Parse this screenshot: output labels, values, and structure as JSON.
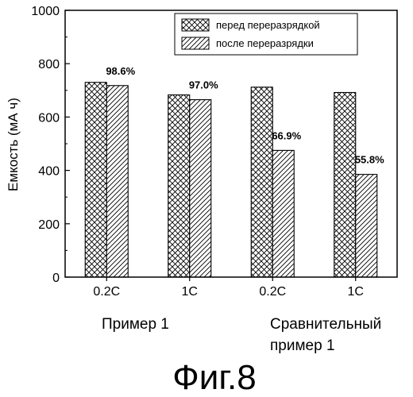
{
  "chart_data": {
    "type": "bar",
    "ylabel": "Емкость (мА ч)",
    "ylim": [
      0,
      1000
    ],
    "yticks": [
      0,
      200,
      400,
      600,
      800,
      1000
    ],
    "categories": [
      "0.2C",
      "1C",
      "0.2C",
      "1C"
    ],
    "groups": [
      {
        "label_lines": [
          "Пример 1"
        ]
      },
      {
        "label_lines": [
          "Сравнительный",
          "пример 1"
        ]
      }
    ],
    "series": [
      {
        "name": "перед переразрядкой",
        "pattern": "crosshatch",
        "values": [
          730,
          683,
          712,
          692
        ]
      },
      {
        "name": "после переразрядки",
        "pattern": "diagonal",
        "values": [
          718,
          665,
          475,
          385
        ]
      }
    ],
    "annotations": [
      "98.6%",
      "97.0%",
      "66.9%",
      "55.8%"
    ],
    "legend_position": "top-right",
    "grid": false
  },
  "figure_label": "Фиг.8"
}
